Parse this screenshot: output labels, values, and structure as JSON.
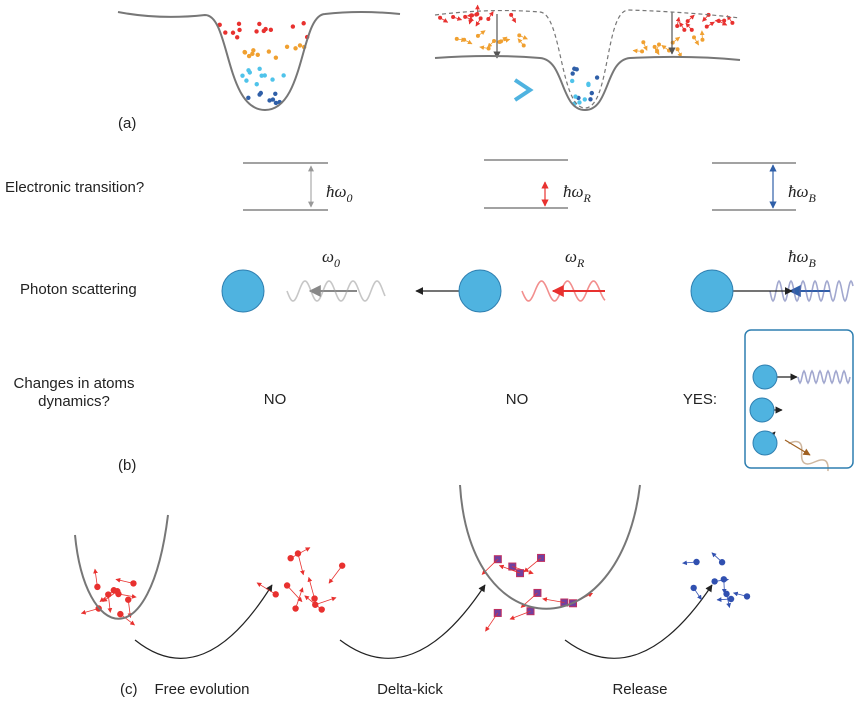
{
  "panel_a": {
    "label": "(a)"
  },
  "panel_b": {
    "label": "(b)",
    "rows": {
      "electronic_transition": "Electronic transition?",
      "photon_scattering": "Photon scattering",
      "dynamics": [
        "Changes in atoms",
        "dynamics?"
      ]
    },
    "transitions": [
      {
        "symbol": "ħω",
        "subscript": "0"
      },
      {
        "symbol": "ħω",
        "subscript": "R"
      },
      {
        "symbol": "ħω",
        "subscript": "B"
      }
    ],
    "photons": [
      {
        "symbol": "ω",
        "subscript": "0"
      },
      {
        "symbol": "ω",
        "subscript": "R"
      },
      {
        "symbol": "ħω",
        "subscript": "B"
      }
    ],
    "answers": [
      "NO",
      "NO",
      "YES:"
    ]
  },
  "panel_c": {
    "label": "(c)",
    "steps": [
      "Free evolution",
      "Delta-kick",
      "Release"
    ]
  }
}
